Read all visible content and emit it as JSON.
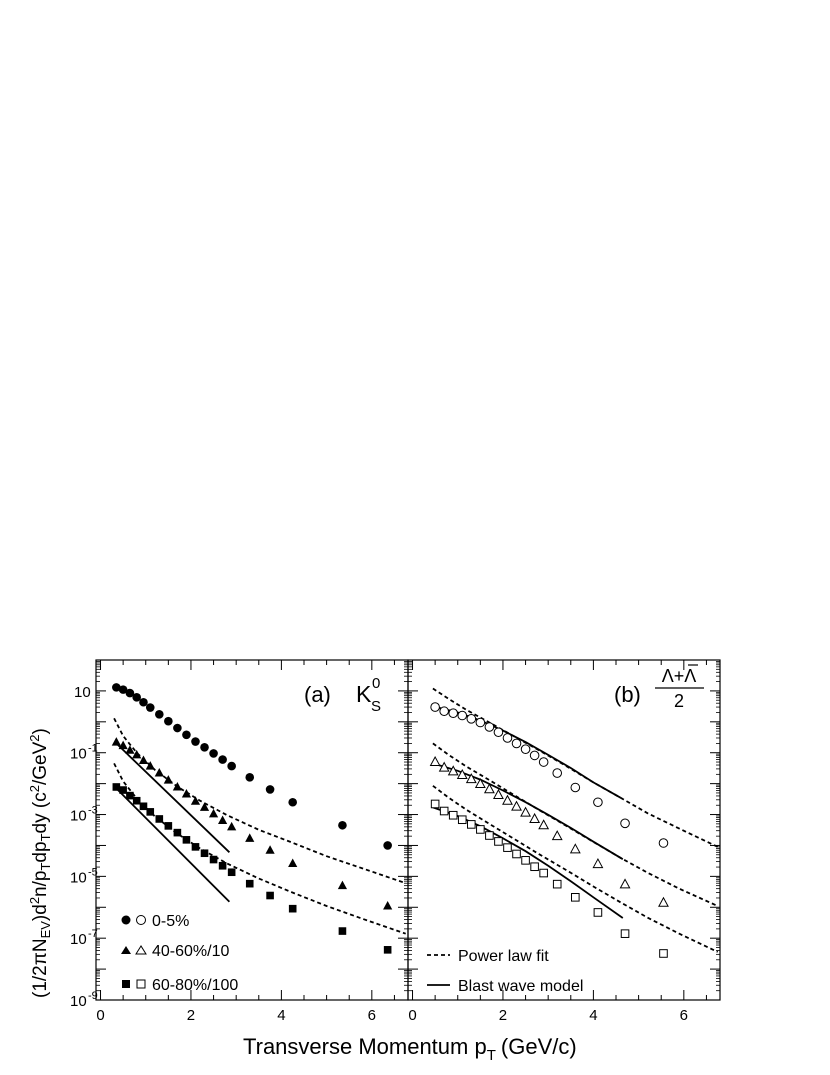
{
  "figure": {
    "xlabel_main": "Transverse Momentum p",
    "xlabel_sub": "T",
    "xlabel_tail": "(GeV/c)",
    "ylabel": "(1/2πN_EV)d²n/p_T dp_T dy (c²/GeV²)",
    "ylabel_parts": [
      "(1/2πN",
      "EV",
      ")d",
      "2",
      "n/p",
      "T",
      "dp",
      "T",
      "dy (c",
      "2",
      "/GeV",
      "2",
      ")"
    ],
    "legend_centrality": [
      "0-5%",
      "40-60%/10",
      "60-80%/100"
    ],
    "legend_lines": [
      "Power law fit",
      "Blast wave model"
    ]
  },
  "chart_data": [
    {
      "type": "scatter",
      "panel_label": "(a)",
      "particle_main": "K",
      "particle_sub": "S",
      "particle_sup": "0",
      "x_ticks": [
        "0",
        "2",
        "4",
        "6"
      ],
      "x_tick_values": [
        0,
        2,
        4,
        6
      ],
      "xlim": [
        -0.1,
        6.8
      ],
      "y_scale": "log",
      "ylim": [
        1e-09,
        100
      ],
      "y_tick_labels": [
        {
          "base": "10",
          "exp": ""
        },
        {
          "base": "10",
          "exp": "-1"
        },
        {
          "base": "10",
          "exp": "-3"
        },
        {
          "base": "10",
          "exp": "-5"
        },
        {
          "base": "10",
          "exp": "-7"
        },
        {
          "base": "10",
          "exp": "-9"
        }
      ],
      "y_tick_values": [
        10,
        0.1,
        0.001,
        1e-05,
        1e-07,
        1e-09
      ],
      "series": [
        {
          "name": "0-5%",
          "marker": "filled-circle",
          "x": [
            0.35,
            0.5,
            0.65,
            0.8,
            0.95,
            1.1,
            1.3,
            1.5,
            1.7,
            1.9,
            2.1,
            2.3,
            2.5,
            2.7,
            2.9,
            3.3,
            3.75,
            4.25,
            5.35,
            6.35
          ],
          "y": [
            13,
            11,
            8.5,
            6.2,
            4.3,
            2.9,
            1.75,
            1.05,
            0.63,
            0.38,
            0.23,
            0.15,
            0.095,
            0.06,
            0.037,
            0.016,
            0.0065,
            0.0025,
            0.00045,
            0.0001
          ]
        },
        {
          "name": "40-60%/10",
          "marker": "filled-triangle",
          "x": [
            0.35,
            0.5,
            0.65,
            0.8,
            0.95,
            1.1,
            1.3,
            1.5,
            1.7,
            1.9,
            2.1,
            2.3,
            2.5,
            2.7,
            2.9,
            3.3,
            3.75,
            4.25,
            5.35,
            6.35
          ],
          "y": [
            0.22,
            0.17,
            0.12,
            0.085,
            0.056,
            0.037,
            0.022,
            0.013,
            0.0078,
            0.0046,
            0.0027,
            0.0017,
            0.00105,
            0.00064,
            0.0004,
            0.00017,
            7e-05,
            2.6e-05,
            5e-06,
            1.1e-06
          ],
          "power_law": {
            "x": [
              0.3,
              0.5,
              0.8,
              1.2,
              1.7,
              2.2,
              2.8,
              3.5,
              4.2,
              5.0,
              5.8,
              6.75
            ],
            "y": [
              1.3,
              0.35,
              0.1,
              0.028,
              0.008,
              0.0028,
              0.00095,
              0.00032,
              0.00013,
              4.5e-05,
              1.8e-05,
              6e-06
            ]
          },
          "blast_wave": {
            "x": [
              0.35,
              2.85
            ],
            "y": [
              0.2,
              6e-05
            ]
          }
        },
        {
          "name": "60-80%/100",
          "marker": "filled-square",
          "x": [
            0.35,
            0.5,
            0.65,
            0.8,
            0.95,
            1.1,
            1.3,
            1.5,
            1.7,
            1.9,
            2.1,
            2.3,
            2.5,
            2.7,
            2.9,
            3.3,
            3.75,
            4.25,
            5.35,
            6.35
          ],
          "y": [
            0.0078,
            0.0062,
            0.0041,
            0.0028,
            0.00185,
            0.00122,
            0.00072,
            0.00043,
            0.00026,
            0.000152,
            9e-05,
            5.6e-05,
            3.5e-05,
            2.2e-05,
            1.36e-05,
            5.8e-06,
            2.4e-06,
            9e-07,
            1.7e-07,
            4.2e-08
          ],
          "power_law": {
            "x": [
              0.3,
              0.5,
              0.8,
              1.2,
              1.7,
              2.2,
              2.8,
              3.5,
              4.2,
              5.0,
              5.8,
              6.75
            ],
            "y": [
              0.045,
              0.012,
              0.0033,
              0.00088,
              0.00024,
              8e-05,
              2.6e-05,
              8.5e-06,
              3.2e-06,
              1.1e-06,
              4.2e-07,
              1.4e-07
            ]
          },
          "blast_wave": {
            "x": [
              0.35,
              2.85
            ],
            "y": [
              0.007,
              1.5e-06
            ]
          }
        }
      ]
    },
    {
      "type": "scatter",
      "panel_label": "(b)",
      "particle_numerator": "Λ+Λ",
      "particle_denominator": "2",
      "x_ticks": [
        "0",
        "2",
        "4",
        "6"
      ],
      "x_tick_values": [
        0,
        2,
        4,
        6
      ],
      "xlim": [
        -0.1,
        6.8
      ],
      "y_scale": "log",
      "ylim": [
        1e-09,
        100
      ],
      "series": [
        {
          "name": "0-5%",
          "marker": "open-circle",
          "x": [
            0.5,
            0.7,
            0.9,
            1.1,
            1.3,
            1.5,
            1.7,
            1.9,
            2.1,
            2.3,
            2.5,
            2.7,
            2.9,
            3.2,
            3.6,
            4.1,
            4.7,
            5.55
          ],
          "y": [
            3,
            2.2,
            1.9,
            1.6,
            1.25,
            0.95,
            0.68,
            0.46,
            0.3,
            0.2,
            0.13,
            0.082,
            0.05,
            0.022,
            0.0075,
            0.0025,
            0.00052,
            0.00012
          ],
          "power_law": {
            "x": [
              0.45,
              0.8,
              1.2,
              1.7,
              2.2,
              2.8,
              3.4,
              4.0,
              4.6,
              5.2,
              5.9,
              6.75
            ],
            "y": [
              12,
              5.5,
              2.4,
              0.95,
              0.37,
              0.12,
              0.037,
              0.011,
              0.0035,
              0.0011,
              0.00035,
              9e-05
            ]
          },
          "blast_wave": {
            "x": [
              0.45,
              1.0,
              1.5,
              2.0,
              2.5,
              3.0,
              3.5,
              4.0,
              4.6
            ],
            "y": [
              3.2,
              2,
              1.1,
              0.52,
              0.22,
              0.085,
              0.032,
              0.011,
              0.0035
            ]
          }
        },
        {
          "name": "40-60%/10",
          "marker": "open-triangle",
          "x": [
            0.5,
            0.7,
            0.9,
            1.1,
            1.3,
            1.5,
            1.7,
            1.9,
            2.1,
            2.3,
            2.5,
            2.7,
            2.9,
            3.2,
            3.6,
            4.1,
            4.7,
            5.55
          ],
          "y": [
            0.05,
            0.033,
            0.025,
            0.019,
            0.014,
            0.0097,
            0.0066,
            0.0043,
            0.0028,
            0.0018,
            0.00115,
            0.00072,
            0.00045,
            0.0002,
            7.5e-05,
            2.5e-05,
            5.5e-06,
            1.4e-06
          ],
          "power_law": {
            "x": [
              0.45,
              0.8,
              1.2,
              1.7,
              2.2,
              2.8,
              3.4,
              4.0,
              4.6,
              5.2,
              5.9,
              6.75
            ],
            "y": [
              0.2,
              0.085,
              0.035,
              0.013,
              0.0047,
              0.0014,
              0.00043,
              0.00013,
              4e-05,
              1.3e-05,
              4e-06,
              1.1e-06
            ]
          },
          "blast_wave": {
            "x": [
              0.45,
              1.0,
              1.5,
              2.0,
              2.5,
              3.0,
              3.5,
              4.0,
              4.65
            ],
            "y": [
              0.045,
              0.026,
              0.0135,
              0.006,
              0.0025,
              0.00098,
              0.00037,
              0.000132,
              3.6e-05
            ]
          }
        },
        {
          "name": "60-80%/100",
          "marker": "open-square",
          "x": [
            0.5,
            0.7,
            0.9,
            1.1,
            1.3,
            1.5,
            1.7,
            1.9,
            2.1,
            2.3,
            2.5,
            2.7,
            2.9,
            3.2,
            3.6,
            4.1,
            4.7,
            5.55
          ],
          "y": [
            0.0022,
            0.0013,
            0.00095,
            0.00068,
            0.00048,
            0.00033,
            0.00021,
            0.000135,
            8.5e-05,
            5.3e-05,
            3.3e-05,
            2.05e-05,
            1.28e-05,
            5.6e-06,
            2.1e-06,
            6.8e-07,
            1.4e-07,
            3.2e-08
          ],
          "power_law": {
            "x": [
              0.45,
              0.8,
              1.2,
              1.7,
              2.2,
              2.8,
              3.4,
              4.0,
              4.6,
              5.2,
              5.9,
              6.75
            ],
            "y": [
              0.0085,
              0.0035,
              0.0014,
              0.0005,
              0.00018,
              5.2e-05,
              1.6e-05,
              4.7e-06,
              1.45e-06,
              4.6e-07,
              1.4e-07,
              3.6e-08
            ]
          },
          "blast_wave": {
            "x": [
              0.45,
              1.0,
              1.5,
              2.0,
              2.5,
              3.0,
              3.5,
              4.0,
              4.65
            ],
            "y": [
              0.0017,
              0.0009,
              0.00042,
              0.00017,
              6.5e-05,
              2.2e-05,
              7e-06,
              2.1e-06,
              4.5e-07
            ]
          }
        }
      ]
    }
  ]
}
